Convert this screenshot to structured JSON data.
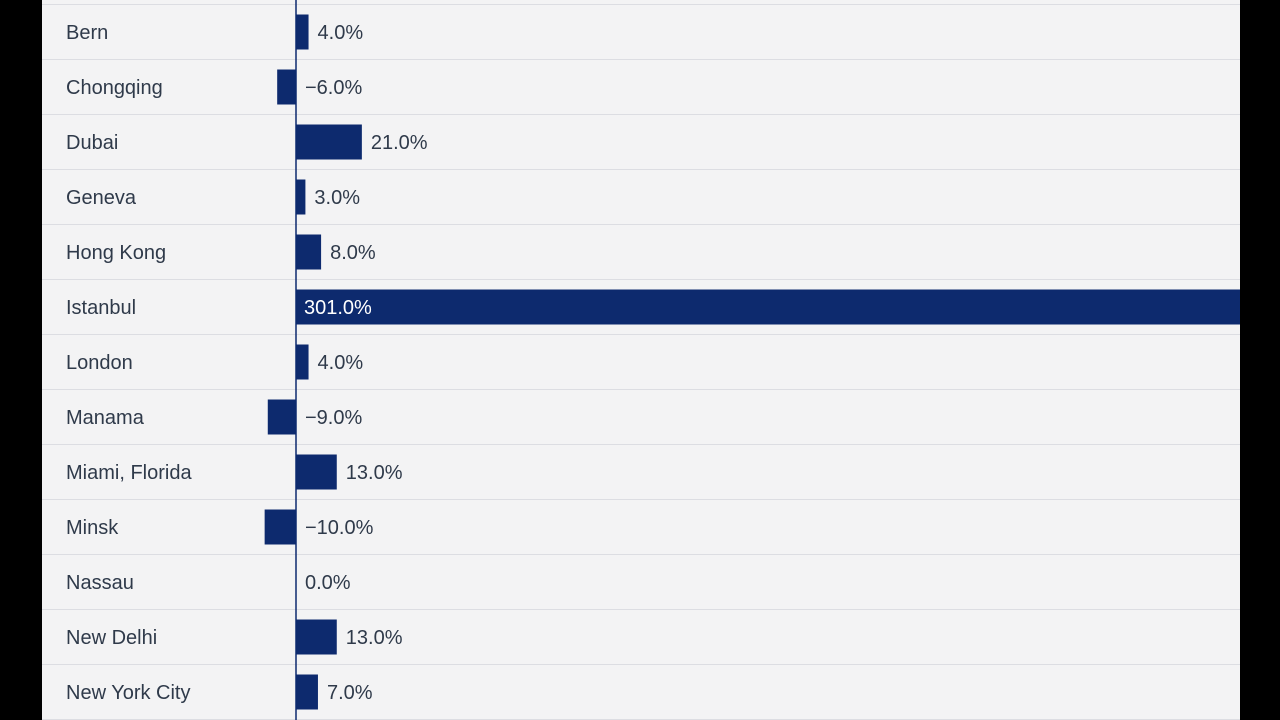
{
  "chart_data": {
    "type": "bar",
    "orientation": "horizontal",
    "categories": [
      "Bern",
      "Chongqing",
      "Dubai",
      "Geneva",
      "Hong Kong",
      "Istanbul",
      "London",
      "Manama",
      "Miami, Florida",
      "Minsk",
      "Nassau",
      "New Delhi",
      "New York City"
    ],
    "values": [
      4.0,
      -6.0,
      21.0,
      3.0,
      8.0,
      301.0,
      4.0,
      -9.0,
      13.0,
      -10.0,
      0.0,
      13.0,
      7.0
    ],
    "value_labels": [
      "4.0%",
      "−6.0%",
      "21.0%",
      "3.0%",
      "8.0%",
      "301.0%",
      "4.0%",
      "−9.0%",
      "13.0%",
      "−10.0%",
      "0.0%",
      "13.0%",
      "7.0%"
    ],
    "title": "",
    "xlabel": "",
    "ylabel": "",
    "xlim": [
      -10,
      301
    ],
    "grid": true,
    "legend": "none",
    "colors": {
      "bar": "#0d2a6e",
      "axis": "#0d2a6e",
      "text": "#2f3a4a",
      "label_inside": "#ffffff",
      "grid": "#dcdde2",
      "panel": "#f3f3f4",
      "frame": "#000000"
    }
  }
}
